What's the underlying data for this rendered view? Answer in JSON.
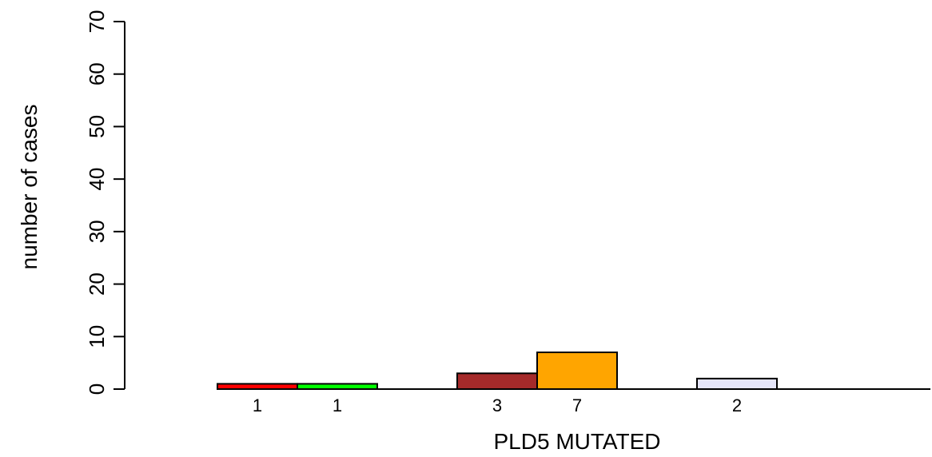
{
  "chart_data": {
    "type": "bar",
    "xlabel": "PLD5 MUTATED",
    "ylabel": "number of cases",
    "ylim": [
      0,
      70
    ],
    "yticks": [
      0,
      10,
      20,
      30,
      40,
      50,
      60,
      70
    ],
    "grid": false,
    "legend": "none",
    "bars": [
      {
        "value": 1,
        "label": "1",
        "color": "#ff0000"
      },
      {
        "value": 1,
        "label": "1",
        "color": "#00ff00"
      },
      {
        "value": 0,
        "label": "",
        "color": "#ffffff"
      },
      {
        "value": 3,
        "label": "3",
        "color": "#a52a2a"
      },
      {
        "value": 7,
        "label": "7",
        "color": "#ffa500"
      },
      {
        "value": 0,
        "label": "",
        "color": "#ffffff"
      },
      {
        "value": 2,
        "label": "2",
        "color": "#e6e6fa"
      },
      {
        "value": 0,
        "label": "",
        "color": "#ffffff"
      },
      {
        "value": 0,
        "label": "",
        "color": "#ffffff"
      }
    ]
  }
}
